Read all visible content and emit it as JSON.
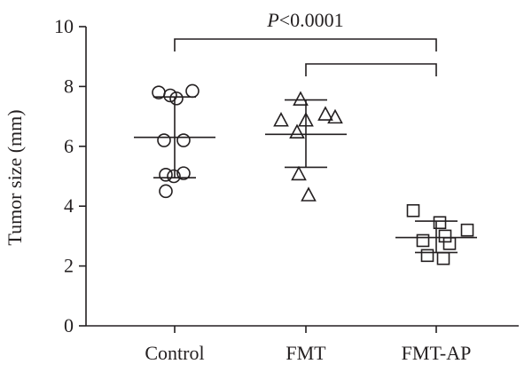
{
  "chart_data": {
    "type": "scatter",
    "ylabel": "Tumor size (mm)",
    "ylim": [
      0,
      10
    ],
    "yticks": [
      0,
      2,
      4,
      6,
      8,
      10
    ],
    "categories": [
      "Control",
      "FMT",
      "FMT-AP"
    ],
    "series": [
      {
        "category": "Control",
        "marker": "circle",
        "values": [
          7.8,
          7.6,
          7.85,
          7.7,
          6.2,
          6.2,
          5.05,
          5.1,
          5.0,
          4.5
        ],
        "mean": 6.3,
        "sd_low": 4.95,
        "sd_high": 7.65
      },
      {
        "category": "FMT",
        "marker": "triangle",
        "values": [
          7.55,
          6.85,
          6.85,
          7.05,
          6.95,
          6.45,
          5.05,
          4.35
        ],
        "mean": 6.4,
        "sd_low": 5.3,
        "sd_high": 7.55
      },
      {
        "category": "FMT-AP",
        "marker": "square",
        "values": [
          3.85,
          3.45,
          3.2,
          3.0,
          2.85,
          2.75,
          2.35,
          2.25
        ],
        "mean": 2.95,
        "sd_low": 2.45,
        "sd_high": 3.5
      }
    ],
    "annotations": [
      {
        "from": "Control",
        "to": "FMT-AP",
        "label_prefix": "P",
        "label_rest": "<0.0001"
      },
      {
        "from": "FMT",
        "to": "FMT-AP",
        "label_prefix": "",
        "label_rest": ""
      }
    ],
    "colors": {
      "ink": "#231f20",
      "background": "#ffffff"
    }
  }
}
